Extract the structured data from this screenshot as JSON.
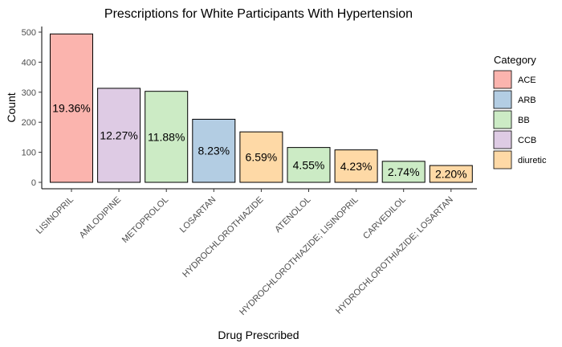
{
  "chart_data": {
    "type": "bar",
    "title": "Prescriptions for White Participants With Hypertension",
    "xlabel": "Drug Prescribed",
    "ylabel": "Count",
    "ylim": [
      0,
      520
    ],
    "yticks": [
      0,
      100,
      200,
      300,
      400,
      500
    ],
    "grid": false,
    "legend_position": "right",
    "legend_title": "Category",
    "categories": [
      "LISINOPRIL",
      "AMLODIPINE",
      "METOPROLOL",
      "LOSARTAN",
      "HYDROCHLOROTHIAZIDE",
      "ATENOLOL",
      "HYDROCHLOROTHIAZIDE; LISINOPRIL",
      "CARVEDILOL",
      "HYDROCHLOROTHIAZIDE; LOSARTAN"
    ],
    "values": [
      494,
      313,
      303,
      210,
      168,
      116,
      108,
      70,
      56
    ],
    "labels": [
      "19.36%",
      "12.27%",
      "11.88%",
      "8.23%",
      "6.59%",
      "4.55%",
      "4.23%",
      "2.74%",
      "2.20%"
    ],
    "bar_groups": [
      "ACE",
      "CCB",
      "BB",
      "ARB",
      "diuretic",
      "BB",
      "diuretic",
      "BB",
      "diuretic"
    ],
    "legend": [
      {
        "name": "ACE",
        "color": "#FBB4AE"
      },
      {
        "name": "ARB",
        "color": "#B3CDE3"
      },
      {
        "name": "BB",
        "color": "#CCEBC5"
      },
      {
        "name": "CCB",
        "color": "#DECBE4"
      },
      {
        "name": "diuretic",
        "color": "#FED9A6"
      }
    ]
  }
}
